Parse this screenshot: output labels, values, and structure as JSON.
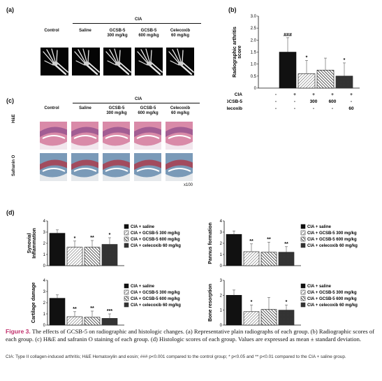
{
  "panel_a": {
    "label": "(a)",
    "cia_header": "CIA",
    "groups": [
      {
        "name": "Control",
        "dose": ""
      },
      {
        "name": "Saline",
        "dose": ""
      },
      {
        "name": "GCSB-5",
        "dose": "300 mg/kg"
      },
      {
        "name": "GCSB-5",
        "dose": "600 mg/kg"
      },
      {
        "name": "Celecoxib",
        "dose": "60 mg/kg"
      }
    ]
  },
  "panel_c": {
    "label": "(c)",
    "cia_header": "CIA",
    "groups": [
      {
        "name": "Control",
        "dose": ""
      },
      {
        "name": "Saline",
        "dose": ""
      },
      {
        "name": "GCSB-5",
        "dose": "300 mg/kg"
      },
      {
        "name": "GCSB-5",
        "dose": "600 mg/kg"
      },
      {
        "name": "Celecoxib",
        "dose": "60 mg/kg"
      }
    ],
    "rows": [
      "H&E",
      "Safranin O"
    ],
    "magnification": "x100",
    "colors": {
      "he_pink": "#d98aa8",
      "he_purple": "#8a4a8a",
      "saf_blue": "#7a9ab8",
      "saf_red": "#b03040"
    }
  },
  "panel_b": {
    "label": "(b)",
    "row_labels": [
      "CIA",
      "GCSB-5",
      "Celecoxib"
    ],
    "table": [
      [
        "-",
        "+",
        "+",
        "+",
        "+"
      ],
      [
        "-",
        "-",
        "300",
        "600",
        "-"
      ],
      [
        "-",
        "-",
        "-",
        "-",
        "60"
      ]
    ]
  },
  "panel_d": {
    "label": "(d)",
    "legend": [
      "CIA + saline",
      "CIA + GCSB-5 300 mg/kg",
      "CIA + GCSB-5 600 mg/kg",
      "CIA + celecoxib 60 mg/kg"
    ]
  },
  "chart_data": [
    {
      "id": "radiographic",
      "type": "bar",
      "ylabel": "Radiographic arthritis score",
      "ylim": [
        0,
        3.0
      ],
      "yticks": [
        "0",
        "0.5",
        "1.0",
        "1.5",
        "2.0",
        "2.5",
        "3.0"
      ],
      "values": [
        0,
        1.5,
        0.6,
        0.75,
        0.5
      ],
      "errors": [
        0,
        0.6,
        0.55,
        0.5,
        0.55
      ],
      "annotations": [
        "",
        "###",
        "*",
        "",
        "*"
      ]
    },
    {
      "id": "synovial",
      "type": "bar",
      "ylabel": "Synovial Inflammation",
      "ylim": [
        0,
        4
      ],
      "yticks": [
        "0",
        "1",
        "2",
        "3",
        "4"
      ],
      "values": [
        2.9,
        1.65,
        1.65,
        1.9
      ],
      "errors": [
        0.3,
        0.55,
        0.6,
        0.6
      ],
      "annotations": [
        "",
        "*",
        "**",
        "*"
      ]
    },
    {
      "id": "pannus",
      "type": "bar",
      "ylabel": "Pannus formation",
      "ylim": [
        0,
        4
      ],
      "yticks": [
        "0",
        "1",
        "2",
        "3",
        "4"
      ],
      "values": [
        2.8,
        1.25,
        1.2,
        1.2
      ],
      "errors": [
        0.3,
        0.7,
        0.9,
        0.5
      ],
      "annotations": [
        "",
        "**",
        "**",
        "**"
      ]
    },
    {
      "id": "cartilage",
      "type": "bar",
      "ylabel": "Cartilage damage",
      "ylim": [
        0,
        4
      ],
      "yticks": [
        "0",
        "1",
        "2",
        "3",
        "4"
      ],
      "values": [
        2.4,
        0.75,
        0.7,
        0.6
      ],
      "errors": [
        0.3,
        0.45,
        0.55,
        0.4
      ],
      "annotations": [
        "",
        "**",
        "**",
        "***"
      ]
    },
    {
      "id": "bone",
      "type": "bar",
      "ylabel": "Bone resorption",
      "ylim": [
        0,
        3
      ],
      "yticks": [
        "0",
        "1",
        "2",
        "3"
      ],
      "values": [
        2.0,
        0.9,
        1.05,
        1.0
      ],
      "errors": [
        0.35,
        0.45,
        0.8,
        0.35
      ],
      "annotations": [
        "",
        "*",
        "",
        "*"
      ]
    }
  ],
  "caption": {
    "figure": "Figure 3.",
    "text": " The effects of GCSB-5 on radiographic and histologic changes. (a) Representative plain radiographs of each group. (b) Radiographic scores of each group. (c) H&E and safranin O staining of each group. (d) Histologic scores of each group. Values are expressed as mean ± standard deviation.",
    "abbreviations": "CIA: Type II collagen-induced arthritis; H&E Hematoxylin and eosin; ### p<0.001 compared to the control group; * p<0.05 and ** p<0.01 compared to the CIA + saline group."
  }
}
